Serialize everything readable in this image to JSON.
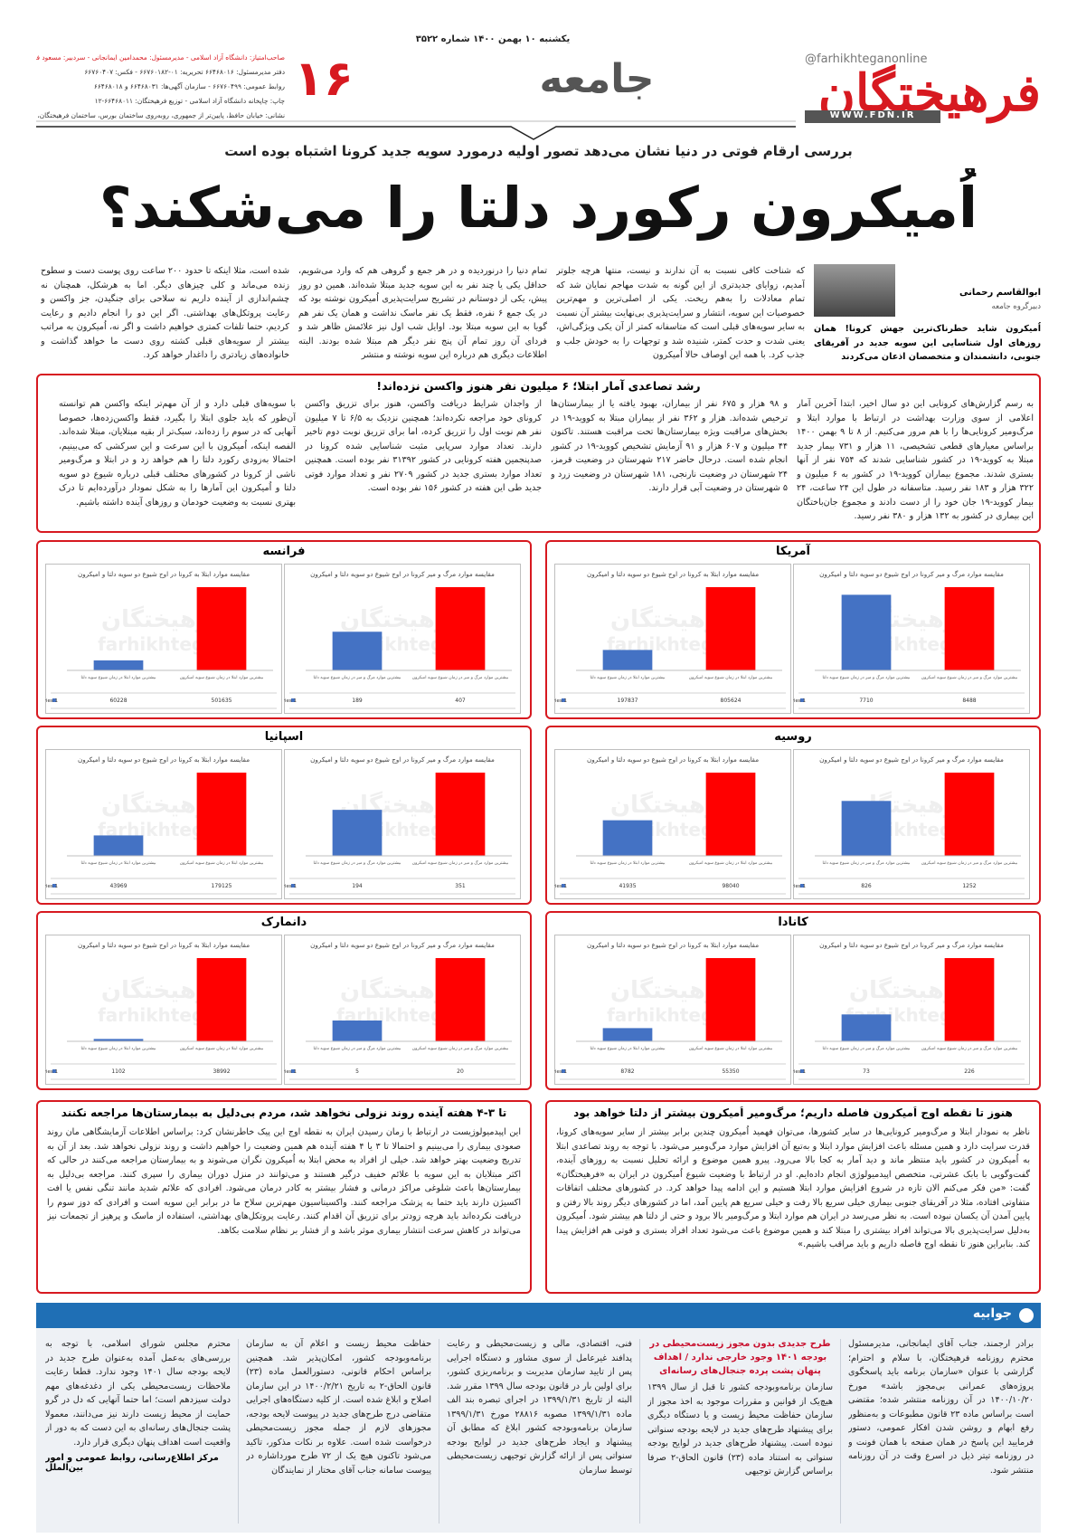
{
  "header": {
    "logo": "فرهیختگان",
    "social": "@farhikhteganonline",
    "website": "WWW.FDN.IR",
    "section": "جامعه",
    "page_number": "۱۶",
    "date_line": "یکشنبه ۱۰ بهمن ۱۴۰۰  شماره ۳۵۲۲",
    "masthead": [
      "صاحب‌امتیاز: دانشگاه آزاد اسلامی - مدیرمسئول: محمدامین ایمانجانی - سردبیر: مسعود فروغی",
      "دفتر مدیرمسئول: ۶۶۴۶۸۰۱۶ تحریریه: ۰۱-۶۶۷۶۰۱۸۲ - فکس: ۶۶۷۶۰۴۰۷",
      "روابط عمومی: ۶۶۷۶۰۴۹۹ - سازمان آگهی‌ها: ۶۶۴۶۸۰۳۱ و ۶۶۴۶۸۰۱۸",
      "چاپ: چاپخانه دانشگاه آزاد اسلامی - توزیع فرهیختگان: ۶۶۴۶۸۰۱۱-۱۲",
      "نشانی: خیابان حافظ، پایین‌تر از جمهوری، روبه‌روی ساختمان بورس، ساختمان فرهیختگان، طبقه سوم"
    ]
  },
  "article": {
    "kicker": "بررسی ارقام فوتی در دنیا نشان می‌دهد تصور اولیه درمورد سویه جدید کرونا اشتباه بوده است",
    "headline": "اُمیکرون رکورد دلتا را می‌شکند؟",
    "author": "ابوالقاسم رحمانی",
    "author_role": "دبیرگروه جامعه",
    "lead": "اُمیکرون شاید خطرناک‌ترین جهش کرونا! همان روزهای اول شناسایی این سویه جدید در آفریقای جنوبی، دانشمندان و متخصصان اذعان می‌کردند",
    "columns": [
      "که شناخت کافی نسبت به آن ندارند و نیست، منتها هرچه جلوتر آمدیم، زوایای جدیدتری از این گونه به شدت مهاجم نمایان شد که تمام معادلات را به‌هم ریخت. یکی از اصلی‌ترین و مهم‌ترین خصوصیات این سویه، انتشار و سرایت‌پذیری بی‌نهایت بیشتر آن نسبت به سایر سویه‌های قبلی است که متاسفانه کمتر از آن یکی ویژگی‌اش، یعنی شدت و حدت کمتر، شنیده شد و توجهات را به خودش جلب و جذب کرد. با همه این اوصاف حالا اُمیکرون",
      "تمام دنیا را درنوردیده و در هر جمع و گروهی هم که وارد می‌شویم، حداقل یکی یا چند نفر به این سویه جدید مبتلا شده‌اند. همین دو روز پیش، یکی از دوستانم در تشریح سرایت‌پذیری اُمیکرون نوشته بود که در یک جمع ۶ نفره، فقط یک نفر ماسک نداشت و همان یک نفر هم گویا به این سویه مبتلا بود. اوایل شب اول نیز علائمش ظاهر شد و فردای آن روز تمام آن پنج نفر دیگر هم مبتلا شده بودند. البته اطلاعات دیگری هم درباره این سویه نوشته و منتشر",
      "شده است، مثلا اینکه تا حدود ۲۰۰ ساعت روی پوست دست و سطوح زنده می‌ماند و کلی چیزهای دیگر. اما به هرشکل، همچنان نه چشم‌اندازی از آینده داریم نه سلاحی برای جنگیدن، جز واکسن و رعایت پروتکل‌های بهداشتی. اگر این دو را انجام دادیم و رعایت کردیم، حتما تلفات کمتری خواهیم داشت و اگر نه، اُمیکرون به مراتب بیشتر از سویه‌های قبلی کشته روی دست ما خواهد گذاشت و خانواده‌های زیادتری را داغدار خواهد کرد."
    ]
  },
  "boxes": [
    {
      "title": "رشد تصاعدی آمار ابتلا؛ ۶ میلیون نفر هنوز واکسن نزده‌اند!",
      "columns": [
        "به رسم گزارش‌های کرونایی این دو سال اخیر، ابتدا آخرین آمار اعلامی از سوی وزارت بهداشت در ارتباط با موارد ابتلا و مرگ‌ومیر کرونایی‌ها را با هم مرور می‌کنیم. از ۸ تا ۹ بهمن ۱۴۰۰ براساس معیارهای قطعی تشخیصی، ۱۱ هزار و ۷۳۱ بیمار جدید مبتلا به کووید-۱۹ در کشور شناسایی شدند که ۷۵۴ نفر از آنها بستری شدند. مجموع بیماران کووید-۱۹ در کشور به ۶ میلیون و ۳۲۲ هزار و ۱۸۳ نفر رسید. متاسفانه در طول این ۲۴ ساعت، ۲۴ بیمار کووید-۱۹ جان خود را از دست دادند و مجموع جان‌باختگان این بیماری در کشور به ۱۳۲ هزار و ۳۸۰ نفر رسید.",
        "و ۹۸ هزار و ۶۷۵ نفر از بیماران، بهبود یافته یا از بیمارستان‌ها ترخیص شده‌اند. هزار و ۳۶۲ نفر از بیماران مبتلا به کووید-۱۹ در بخش‌های مراقبت ویژه بیمارستان‌ها تحت مراقبت هستند. تاکنون ۴۴ میلیون و ۶۰۷ هزار و ۹۱ آزمایش تشخیص کووید-۱۹ در کشور انجام شده است. درحال حاضر ۲۱۷ شهرستان در وضعیت قرمز، ۲۴ شهرستان در وضعیت نارنجی، ۱۸۱ شهرستان در وضعیت زرد و ۵ شهرستان در وضعیت آبی قرار دارند.",
        "از واجدان شرایط دریافت واکسن، هنوز برای تزریق واکسن کرونای خود مراجعه نکرده‌اند؛ همچنین نزدیک به ۶/۵ تا ۷ میلیون نفر هم نوبت اول را تزریق کرده، اما برای تزریق نوبت دوم تاخیر دارند. تعداد موارد سرپایی مثبت شناسایی شده کرونا در صدپنجمین هفته کرونایی در کشور ۳۱۳۹۲ نفر بوده است. همچنین تعداد موارد بستری جدید در کشور ۲۷۰۹ نفر و تعداد موارد فوتی جدید طی این هفته در کشور ۱۵۶ نفر بوده است.",
        "با سویه‌های قبلی دارد و از آن مهم‌تر اینکه واکسن هم توانسته آن‌طور که باید جلوی ابتلا را بگیرد، فقط واکسن‌زده‌ها، خصوصا آنهایی که در سوم را زده‌اند، سبک‌تر از بقیه مبتلایان، مبتلا شده‌اند. الفصه اینکه، اُمیکرون با این سرعت و این سرکشی که می‌بینیم، احتمالا به‌زودی رکورد دلتا را هم خواهد زد و در ابتلا و مرگ‌ومیر ناشی از کرونا در کشورهای مختلف قبلی درباره شیوع دو سویه دلتا و اُمیکرون این آمارها را به شکل نمودار درآورده‌ایم تا درک بهتری نسبت به وضعیت خودمان و روزهای آینده داشته باشیم."
      ]
    },
    {
      "title": "هنوز تا نقطه اوج اُمیکرون فاصله داریم؛ مرگ‌ومیر اُمیکرون بیشتر از دلتا خواهد بود",
      "text": "ناظر به نمودار ابتلا و مرگ‌ومیر کرونایی‌ها در سایر کشورها، می‌توان فهمید اُمیکرون چندین برابر بیشتر از سایر سویه‌های کرونا، قدرت سرایت دارد و همین مسئله باعث افزایش موارد ابتلا و به‌تبع آن افزایش موارد مرگ‌ومیر می‌شود. با توجه به روند تصاعدی ابتلا به اُمیکرون در کشور باید منتظر ماند و دید آمار به کجا بالا می‌رود. پیرو همین موضوع و ارائه تحلیل نسبت به روزهای آینده، گفت‌وگویی با بابک عشرتی، متخصص اپیدمیولوژی انجام داده‌ایم. او در ارتباط با وضعیت شیوع اُمیکرون در ایران به «فرهیختگان» گفت: «من فکر می‌کنم الان تازه در شروع افزایش موارد ابتلا هستیم و این ادامه پیدا خواهد کرد. در کشورهای مختلف اتفاقات متفاوتی افتاده، مثلا در آفریقای جنوبی بیماری خیلی سریع بالا رفت و خیلی سریع هم پایین آمد، اما در کشورهای دیگر روند بالا رفتن و پایین آمدن آن یکسان نبوده است. به نظر می‌رسد در ایران هم موارد ابتلا و مرگ‌ومیر بالا برود و حتی از دلتا هم بیشتر شود. اُمیکرون به‌دلیل سرایت‌پذیری بالا می‌تواند افراد بیشتری را مبتلا کند و همین موضوع باعث می‌شود تعداد افراد بستری و فوتی هم افزایش پیدا کند. بنابراین هنوز تا نقطه اوج فاصله داریم و باید مراقب باشیم.»"
    },
    {
      "title": "تا ۳-۴ هفته آینده روند نزولی نخواهد شد، مردم بی‌دلیل به بیمارستان‌ها مراجعه نکنند",
      "text": "این اپیدمیولوژیست در ارتباط با زمان رسیدن ایران به نقطه اوج این پیک خاطرنشان کرد: براساس اطلاعات آزمایشگاهی مان روند صعودی بیماری را می‌بینیم و احتمالا تا ۳ یا ۴ هفته آینده هم همین وضعیت را خواهیم داشت و روند نزولی نخواهد شد. بعد از آن به تدریج وضعیت بهتر خواهد شد. خیلی از افراد به محض ابتلا به اُمیکرون نگران می‌شوند و به بیمارستان مراجعه می‌کنند در حالی که اکثر مبتلایان به این سویه با علائم خفیف درگیر هستند و می‌توانند در منزل دوران بیماری را سپری کنند. مراجعه بی‌دلیل به بیمارستان‌ها باعث شلوغی مراکز درمانی و فشار بیشتر به کادر درمان می‌شود. افرادی که علائم شدید مانند تنگی نفس یا افت اکسیژن دارند باید حتما به پزشک مراجعه کنند. واکسیناسیون مهم‌ترین سلاح ما در برابر این سویه است و افرادی که دوز سوم را دریافت نکرده‌اند باید هرچه زودتر برای تزریق آن اقدام کنند. رعایت پروتکل‌های بهداشتی، استفاده از ماسک و پرهیز از تجمعات نیز می‌تواند در کاهش سرعت انتشار بیماری موثر باشد و از فشار بر نظام سلامت بکاهد."
    }
  ],
  "panels": [
    {
      "title": "آمریکا"
    },
    {
      "title": "فرانسه"
    },
    {
      "title": "روسیه"
    },
    {
      "title": "اسپانیا"
    },
    {
      "title": "کانادا"
    },
    {
      "title": "دانمارک"
    }
  ],
  "chart_watermark": "farhikhtegan",
  "chart_data": [
    {
      "type": "bar",
      "title": "مقایسه موارد مرگ و میر کرونا در اوج شیوع دو سویه دلتا و امیکرون",
      "categories": [
        "بیشترین موارد مرگ و میر در زمان شیوع سویه دلتا",
        "بیشترین موارد مرگ و میر در زمان شیوع سویه امیکرون"
      ],
      "colors": [
        "#4472c4",
        "#ff0000"
      ],
      "series": [
        {
          "name": "Series 1",
          "values": [
            7710,
            8488
          ]
        }
      ]
    },
    {
      "type": "bar",
      "title": "مقایسه موارد ابتلا به کرونا در اوج شیوع دو سویه دلتا و امیکرون",
      "categories": [
        "بیشترین موارد ابتلا در زمان شیوع سویه دلتا",
        "بیشترین موارد ابتلا در زمان شیوع سویه امیکرون"
      ],
      "colors": [
        "#4472c4",
        "#ff0000"
      ],
      "series": [
        {
          "name": "Series 1",
          "values": [
            197837,
            805624
          ]
        }
      ]
    },
    {
      "type": "bar",
      "title": "مقایسه موارد مرگ و میر کرونا در اوج شیوع دو سویه دلتا و امیکرون",
      "categories": [
        "بیشترین موارد مرگ و میر در زمان شیوع سویه دلتا",
        "بیشترین موارد مرگ و میر در زمان شیوع سویه امیکرون"
      ],
      "colors": [
        "#4472c4",
        "#ff0000"
      ],
      "series": [
        {
          "name": "Series 1",
          "values": [
            189,
            407
          ]
        }
      ]
    },
    {
      "type": "bar",
      "title": "مقایسه موارد ابتلا به کرونا در اوج شیوع دو سویه دلتا و امیکرون",
      "categories": [
        "بیشترین موارد ابتلا در زمان شیوع سویه دلتا",
        "بیشترین موارد ابتلا در زمان شیوع سویه امیکرون"
      ],
      "colors": [
        "#4472c4",
        "#ff0000"
      ],
      "series": [
        {
          "name": "Series 1",
          "values": [
            60228,
            501635
          ]
        }
      ]
    },
    {
      "type": "bar",
      "title": "مقایسه موارد مرگ و میر کرونا در اوج شیوع دو سویه دلتا و امیکرون",
      "categories": [
        "بیشترین موارد مرگ و میر در زمان شیوع سویه دلتا",
        "بیشترین موارد مرگ و میر در زمان شیوع سویه امیکرون"
      ],
      "colors": [
        "#4472c4",
        "#ff0000"
      ],
      "series": [
        {
          "name": "Series 1",
          "values": [
            826,
            1252
          ]
        }
      ]
    },
    {
      "type": "bar",
      "title": "مقایسه موارد ابتلا به کرونا در اوج شیوع دو سویه دلتا و امیکرون",
      "categories": [
        "بیشترین موارد ابتلا در زمان شیوع سویه دلتا",
        "بیشترین موارد ابتلا در زمان شیوع سویه امیکرون"
      ],
      "colors": [
        "#4472c4",
        "#ff0000"
      ],
      "series": [
        {
          "name": "Series 1",
          "values": [
            41935,
            98040
          ]
        }
      ]
    },
    {
      "type": "bar",
      "title": "مقایسه موارد مرگ و میر کرونا در اوج شیوع دو سویه دلتا و امیکرون",
      "categories": [
        "بیشترین موارد مرگ و میر در زمان شیوع سویه دلتا",
        "بیشترین موارد مرگ و میر در زمان شیوع سویه امیکرون"
      ],
      "colors": [
        "#4472c4",
        "#ff0000"
      ],
      "series": [
        {
          "name": "Series 1",
          "values": [
            194,
            351
          ]
        }
      ]
    },
    {
      "type": "bar",
      "title": "مقایسه موارد ابتلا به کرونا در اوج شیوع دو سویه دلتا و امیکرون",
      "categories": [
        "بیشترین موارد ابتلا در زمان شیوع سویه دلتا",
        "بیشترین موارد ابتلا در زمان شیوع سویه امیکرون"
      ],
      "colors": [
        "#4472c4",
        "#ff0000"
      ],
      "series": [
        {
          "name": "Series 1",
          "values": [
            43969,
            179125
          ]
        }
      ]
    },
    {
      "type": "bar",
      "title": "مقایسه موارد مرگ و میر کرونا در اوج شیوع دو سویه دلتا و امیکرون",
      "categories": [
        "بیشترین موارد مرگ و میر در زمان شیوع سویه دلتا",
        "بیشترین موارد مرگ و میر در زمان شیوع سویه امیکرون"
      ],
      "colors": [
        "#4472c4",
        "#ff0000"
      ],
      "series": [
        {
          "name": "Series 1",
          "values": [
            73,
            226
          ]
        }
      ]
    },
    {
      "type": "bar",
      "title": "مقایسه موارد ابتلا به کرونا در اوج شیوع دو سویه دلتا و امیکرون",
      "categories": [
        "بیشترین موارد ابتلا در زمان شیوع سویه دلتا",
        "بیشترین موارد ابتلا در زمان شیوع سویه امیکرون"
      ],
      "colors": [
        "#4472c4",
        "#ff0000"
      ],
      "series": [
        {
          "name": "Series 1",
          "values": [
            8782,
            55350
          ]
        }
      ]
    },
    {
      "type": "bar",
      "title": "مقایسه موارد مرگ و میر کرونا در اوج شیوع دو سویه دلتا و امیکرون",
      "categories": [
        "بیشترین موارد مرگ و میر در زمان شیوع سویه دلتا",
        "بیشترین موارد مرگ و میر در زمان شیوع سویه امیکرون"
      ],
      "colors": [
        "#4472c4",
        "#ff0000"
      ],
      "series": [
        {
          "name": "Series 1",
          "values": [
            5,
            20
          ]
        }
      ]
    },
    {
      "type": "bar",
      "title": "مقایسه موارد ابتلا به کرونا در اوج شیوع دو سویه دلتا و امیکرون",
      "categories": [
        "بیشترین موارد ابتلا در زمان شیوع سویه دلتا",
        "بیشترین موارد ابتلا در زمان شیوع سویه امیکرون"
      ],
      "colors": [
        "#4472c4",
        "#ff0000"
      ],
      "series": [
        {
          "name": "Series 1",
          "values": [
            1102,
            38992
          ]
        }
      ]
    }
  ],
  "reply": {
    "title": "جوابیه",
    "columns": [
      {
        "text": "برادر ارجمند، جناب آقای ایمانجانی، مدیرمسئول محترم روزنامه فرهیختگان، با سلام و احترام؛ گزارشی با عنوان «سازمان برنامه باید پاسخگوی پروژه‌های عمرانی بی‌مجوز باشد» مورخ ۱۴۰۰/۱۰/۲۰ در آن روزنامه منتشر شده؛ مقتضی است براساس ماده ۲۳ قانون مطبوعات و به‌منظور رفع ابهام و روشن شدن افکار عمومی، دستور فرمایید این پاسخ در همان صفحه با همان فونت و در روزنامه تیتر ذیل در اسرع وقت در آن روزنامه منتشر شود."
      },
      {
        "heading": "طرح جدیدی بدون مجوز زیست‌محیطی در بودجه ۱۴۰۱ وجود خارجی ندارد / اهداف پنهان پشت پرده جنجال‌های رسانه‌ای",
        "text": "سازمان برنامه‌وبودجه کشور تا قبل از سال ۱۳۹۹ هیچ‌یک از قوانین و مقررات موجود به اخذ مجوز از سازمان حفاظت محیط زیست و یا دستگاه دیگری برای پیشنهاد طرح‌های جدید در لایحه بودجه سنواتی نبوده است. پیشنهاد طرح‌های جدید در لوایح بودجه سنواتی به استناد ماده (۲۳) قانون الحاق-۲ صرفا براساس گزارش توجیهی"
      },
      {
        "text": "فنی، اقتصادی، مالی و زیست‌محیطی و رعایت پدافند غیرعامل از سوی مشاور و دستگاه اجرایی پس از تایید سازمان مدیریت و برنامه‌ریزی کشور، برای اولین بار در قانون بودجه سال ۱۳۹۹ مقرر شد. البته از تاریخ ۱۳۹۹/۱/۳۱ در اجرای تبصره بند الف ماده ۱۳۹۹/۱/۳۱ مصوبه ۲۸۸۱۶ مورخ ۱۳۹۹/۱/۳۱ سازمان برنامه‌وبودجه کشور ابلاغ که مطابق آن پیشنهاد و ایجاد طرح‌های جدید در لوایح بودجه سنواتی پس از ارائه گزارش توجیهی زیست‌محیطی توسط سازمان"
      },
      {
        "text": "حفاظت محیط زیست و اعلام آن به سازمان برنامه‌وبودجه کشور، امکان‌پذیر شد. همچنین براساس احکام قانونی، دستورالعمل ماده (۲۳) قانون الحاق-۲ به تاریخ ۱۴۰۰/۲/۲۱ در این سازمان اصلاح و ابلاغ شده است. از کلیه دستگاه‌های اجرایی متقاضی درج طرح‌های جدید در پیوست لایحه بودجه، مجوزهای لازم از جمله مجوز زیست‌محیطی درخواست شده است. علاوه بر نکات مذکور، تاکید می‌شود تاکنون هیچ یک از ۷۲ طرح مورداشاره در پیوست سامانه جناب آقای مختار از نمایندگان"
      },
      {
        "text": "محترم مجلس شورای اسلامی، با توجه به بررسی‌های به‌عمل آمده به‌عنوان طرح جدید در لایحه بودجه سال ۱۴۰۱ وجود ندارد. قطعا رعایت ملاحظات زیست‌محیطی یکی از دغدغه‌های مهم دولت سیزدهم است؛ اما حتما آنهایی که دل در گرو حمایت از محیط زیست دارند نیز می‌دانند، معمولا پشت جنجال‌های رسانه‌ای به این دست که به دور از واقعیت است اهداف پنهان دیگری قرار دارد.",
        "signature": "مرکز اطلاع‌رسانی، روابط عمومی و امور بین‌الملل"
      }
    ]
  }
}
